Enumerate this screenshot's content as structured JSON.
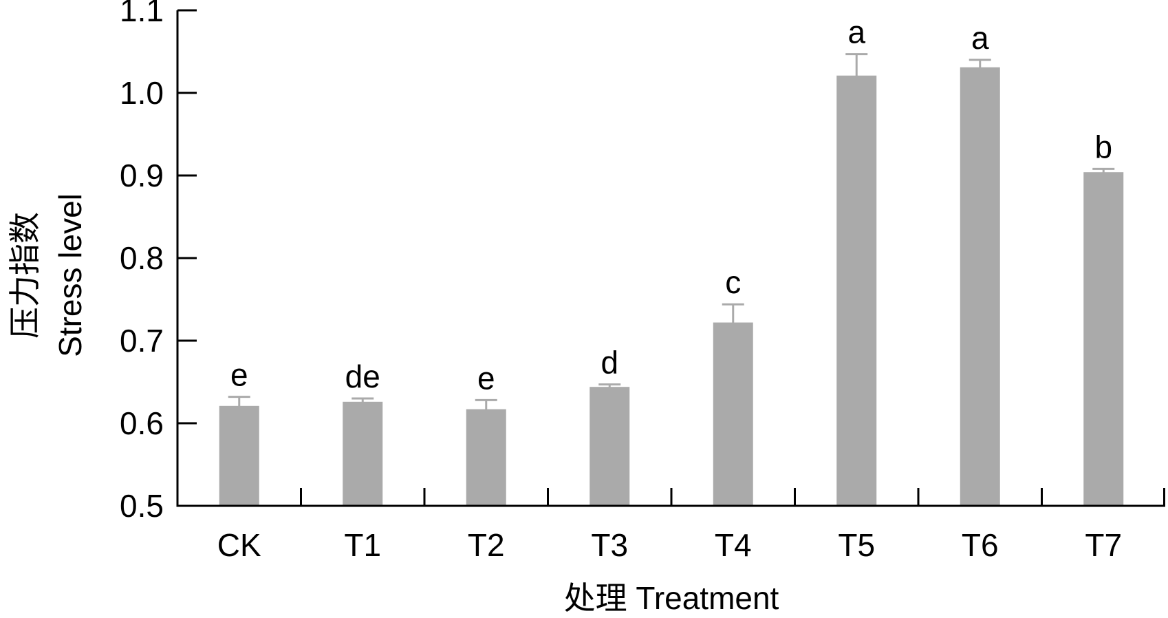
{
  "chart_data": {
    "type": "bar",
    "xlabel": "处理 Treatment",
    "ylabel_line1": "压力指数",
    "ylabel_line2": "Stress level",
    "categories": [
      "CK",
      "T1",
      "T2",
      "T3",
      "T4",
      "T5",
      "T6",
      "T7"
    ],
    "values": [
      0.621,
      0.626,
      0.617,
      0.644,
      0.722,
      1.021,
      1.031,
      0.904
    ],
    "errors": [
      0.011,
      0.004,
      0.011,
      0.003,
      0.022,
      0.026,
      0.009,
      0.004
    ],
    "significance": [
      "e",
      "de",
      "e",
      "d",
      "c",
      "a",
      "a",
      "b"
    ],
    "ylim": [
      0.5,
      1.1
    ],
    "yticks": [
      "0.5",
      "0.6",
      "0.7",
      "0.8",
      "0.9",
      "1.0",
      "1.1"
    ],
    "bar_color": "#aaaaaa",
    "error_color": "#aaaaaa",
    "grid": false,
    "legend": "none"
  }
}
